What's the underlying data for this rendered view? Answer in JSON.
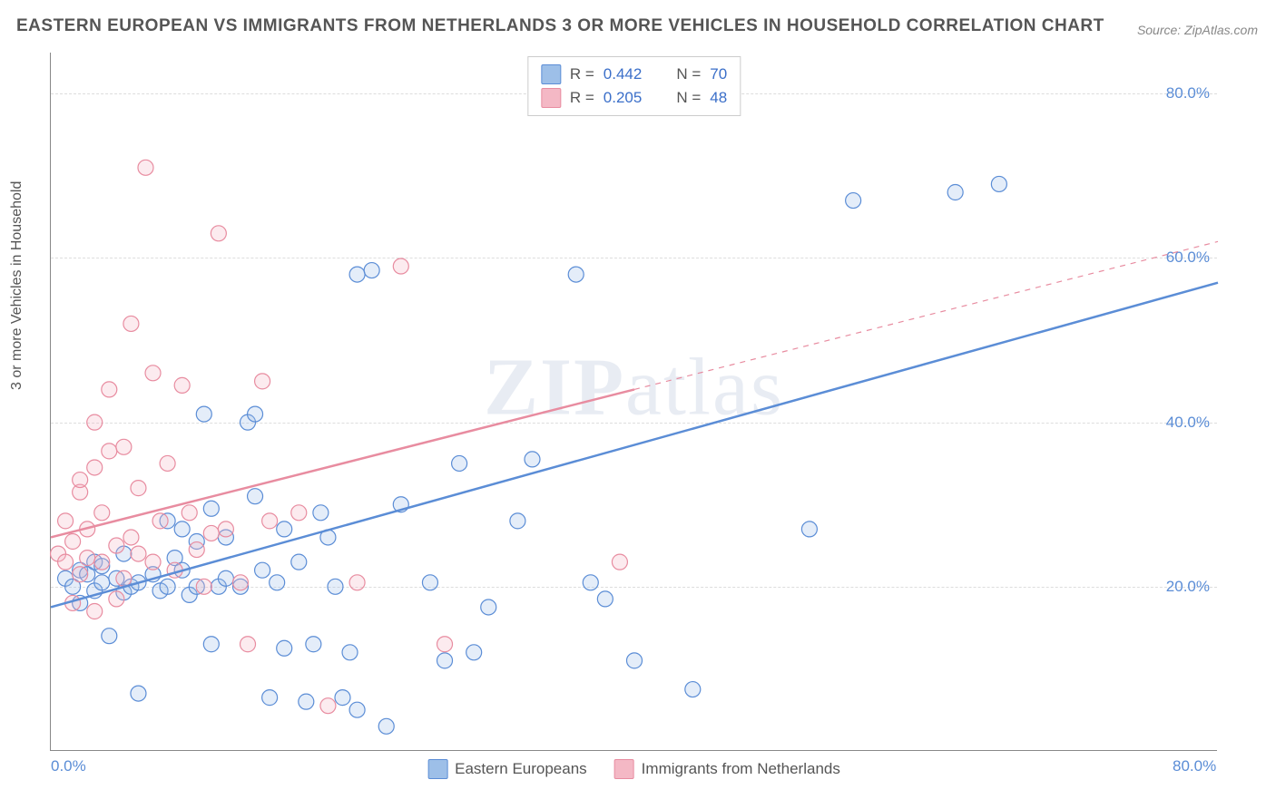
{
  "title": "EASTERN EUROPEAN VS IMMIGRANTS FROM NETHERLANDS 3 OR MORE VEHICLES IN HOUSEHOLD CORRELATION CHART",
  "source": "Source: ZipAtlas.com",
  "watermark": "ZIPatlas",
  "y_axis_label": "3 or more Vehicles in Household",
  "chart": {
    "type": "scatter",
    "background_color": "#ffffff",
    "grid_color": "#dddddd",
    "axis_color": "#888888",
    "xlim": [
      0,
      80
    ],
    "ylim": [
      0,
      85
    ],
    "x_ticks": [
      {
        "v": 0,
        "label": "0.0%"
      },
      {
        "v": 80,
        "label": "80.0%"
      }
    ],
    "y_ticks": [
      {
        "v": 20,
        "label": "20.0%"
      },
      {
        "v": 40,
        "label": "40.0%"
      },
      {
        "v": 60,
        "label": "60.0%"
      },
      {
        "v": 80,
        "label": "80.0%"
      }
    ],
    "marker_radius": 8.5,
    "marker_stroke_width": 1.2,
    "marker_fill_opacity": 0.28,
    "reg_line_width": 2.5,
    "tick_font_color": "#5b8dd6"
  },
  "series": [
    {
      "key": "eastern_europeans",
      "label": "Eastern Europeans",
      "color_stroke": "#5b8dd6",
      "color_fill": "#9dbfe8",
      "R": "0.442",
      "N": "70",
      "regression": {
        "x1": 0,
        "y1": 17.5,
        "x2": 80,
        "y2": 57,
        "dash_after_x": 80
      },
      "points": [
        [
          1,
          21
        ],
        [
          1.5,
          20
        ],
        [
          2,
          18
        ],
        [
          2,
          22
        ],
        [
          2.5,
          21.5
        ],
        [
          3,
          23
        ],
        [
          3,
          19.5
        ],
        [
          3.5,
          20.5
        ],
        [
          3.5,
          22.5
        ],
        [
          4,
          14
        ],
        [
          4.5,
          21
        ],
        [
          5,
          19.3
        ],
        [
          5,
          24
        ],
        [
          5.5,
          20
        ],
        [
          6,
          20.5
        ],
        [
          6,
          7
        ],
        [
          7,
          21.5
        ],
        [
          7.5,
          19.5
        ],
        [
          8,
          20
        ],
        [
          8,
          28
        ],
        [
          8.5,
          23.5
        ],
        [
          9,
          22
        ],
        [
          9,
          27
        ],
        [
          9.5,
          19
        ],
        [
          10,
          20
        ],
        [
          10,
          25.5
        ],
        [
          10.5,
          41
        ],
        [
          11,
          29.5
        ],
        [
          11,
          13
        ],
        [
          11.5,
          20
        ],
        [
          12,
          26
        ],
        [
          12,
          21
        ],
        [
          13,
          20
        ],
        [
          13.5,
          40
        ],
        [
          14,
          31
        ],
        [
          14,
          41
        ],
        [
          14.5,
          22
        ],
        [
          15,
          6.5
        ],
        [
          15.5,
          20.5
        ],
        [
          16,
          27
        ],
        [
          16,
          12.5
        ],
        [
          17,
          23
        ],
        [
          17.5,
          6
        ],
        [
          18,
          13
        ],
        [
          18.5,
          29
        ],
        [
          19,
          26
        ],
        [
          19.5,
          20
        ],
        [
          20,
          6.5
        ],
        [
          20.5,
          12
        ],
        [
          21,
          5
        ],
        [
          21,
          58
        ],
        [
          22,
          58.5
        ],
        [
          23,
          3
        ],
        [
          24,
          30
        ],
        [
          26,
          20.5
        ],
        [
          27,
          11
        ],
        [
          28,
          35
        ],
        [
          29,
          12
        ],
        [
          30,
          17.5
        ],
        [
          32,
          28
        ],
        [
          33,
          35.5
        ],
        [
          36,
          58
        ],
        [
          37,
          20.5
        ],
        [
          38,
          18.5
        ],
        [
          40,
          11
        ],
        [
          44,
          7.5
        ],
        [
          52,
          27
        ],
        [
          55,
          67
        ],
        [
          62,
          68
        ],
        [
          65,
          69
        ]
      ]
    },
    {
      "key": "netherlands",
      "label": "Immigrants from Netherlands",
      "color_stroke": "#e88ca0",
      "color_fill": "#f4b8c5",
      "R": "0.205",
      "N": "48",
      "regression": {
        "x1": 0,
        "y1": 26,
        "x2": 40,
        "y2": 44,
        "dash_after_x": 40,
        "dash_x2": 80,
        "dash_y2": 62
      },
      "points": [
        [
          0.5,
          24
        ],
        [
          1,
          23
        ],
        [
          1,
          28
        ],
        [
          1.5,
          18
        ],
        [
          1.5,
          25.5
        ],
        [
          2,
          31.5
        ],
        [
          2,
          33
        ],
        [
          2,
          21.5
        ],
        [
          2.5,
          23.5
        ],
        [
          2.5,
          27
        ],
        [
          3,
          17
        ],
        [
          3,
          34.5
        ],
        [
          3,
          40
        ],
        [
          3.5,
          23
        ],
        [
          3.5,
          29
        ],
        [
          4,
          44
        ],
        [
          4,
          36.5
        ],
        [
          4.5,
          18.5
        ],
        [
          4.5,
          25
        ],
        [
          5,
          21
        ],
        [
          5,
          37
        ],
        [
          5.5,
          52
        ],
        [
          5.5,
          26
        ],
        [
          6,
          24
        ],
        [
          6,
          32
        ],
        [
          6.5,
          71
        ],
        [
          7,
          23
        ],
        [
          7,
          46
        ],
        [
          7.5,
          28
        ],
        [
          8,
          35
        ],
        [
          8.5,
          22
        ],
        [
          9,
          44.5
        ],
        [
          9.5,
          29
        ],
        [
          10,
          24.5
        ],
        [
          10.5,
          20
        ],
        [
          11,
          26.5
        ],
        [
          11.5,
          63
        ],
        [
          12,
          27
        ],
        [
          13,
          20.5
        ],
        [
          13.5,
          13
        ],
        [
          14.5,
          45
        ],
        [
          15,
          28
        ],
        [
          17,
          29
        ],
        [
          19,
          5.5
        ],
        [
          21,
          20.5
        ],
        [
          24,
          59
        ],
        [
          27,
          13
        ],
        [
          39,
          23
        ]
      ]
    }
  ],
  "stats_legend": {
    "r_label": "R =",
    "n_label": "N ="
  },
  "bottom_legend": {
    "items": [
      "Eastern Europeans",
      "Immigrants from Netherlands"
    ]
  }
}
